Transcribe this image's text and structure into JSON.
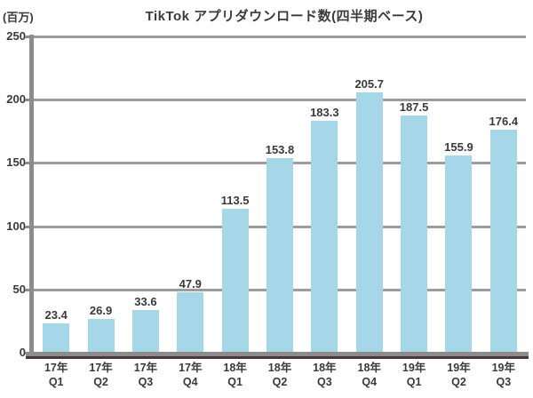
{
  "title": "TikTok アプリダウンロード数(四半期ベース)",
  "y_unit_label": "(百万)",
  "chart_data": {
    "type": "bar",
    "title": "TikTok アプリダウンロード数(四半期ベース)",
    "categories": [
      [
        "17年",
        "Q1"
      ],
      [
        "17年",
        "Q2"
      ],
      [
        "17年",
        "Q3"
      ],
      [
        "17年",
        "Q4"
      ],
      [
        "18年",
        "Q1"
      ],
      [
        "18年",
        "Q2"
      ],
      [
        "18年",
        "Q3"
      ],
      [
        "18年",
        "Q4"
      ],
      [
        "19年",
        "Q1"
      ],
      [
        "19年",
        "Q2"
      ],
      [
        "19年",
        "Q3"
      ]
    ],
    "values": [
      23.4,
      26.9,
      33.6,
      47.9,
      113.5,
      153.8,
      183.3,
      205.7,
      187.5,
      155.9,
      176.4
    ],
    "xlabel": "",
    "ylabel": "(百万)",
    "ylim": [
      0,
      250
    ],
    "yticks": [
      0,
      50,
      100,
      150,
      200,
      250
    ],
    "grid": true,
    "legend": false,
    "bar_color": "#a6d7e8",
    "text_color": "#3a3a3a",
    "axis_color": "#8c8c8c",
    "gridline_color": "#9c9c9c"
  }
}
